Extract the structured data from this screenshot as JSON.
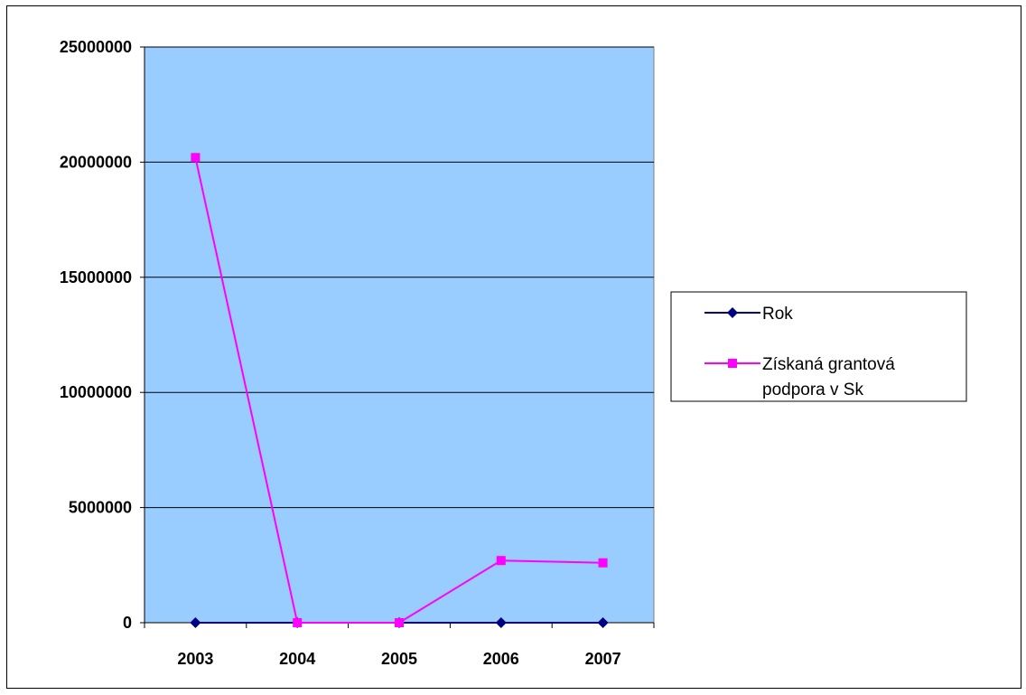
{
  "chart_data": {
    "type": "line",
    "categories": [
      "2003",
      "2004",
      "2005",
      "2006",
      "2007"
    ],
    "ylim": [
      0,
      25000000
    ],
    "yticks": [
      0,
      5000000,
      10000000,
      15000000,
      20000000,
      25000000
    ],
    "ytick_labels": [
      "0",
      "5000000",
      "10000000",
      "15000000",
      "20000000",
      "25000000"
    ],
    "grid": true,
    "plot_background": "#99ccff",
    "legend_position": "right",
    "series": [
      {
        "name": "Rok",
        "values": [
          2003,
          2004,
          2005,
          2006,
          2007
        ],
        "color": "#000080",
        "marker": "diamond"
      },
      {
        "name": "Získaná grantová podpora v Sk",
        "name_lines": [
          "Získaná grantová",
          "podpora v Sk"
        ],
        "values": [
          20200000,
          0,
          0,
          2700000,
          2600000
        ],
        "color": "#ff00ff",
        "marker": "square"
      }
    ]
  }
}
